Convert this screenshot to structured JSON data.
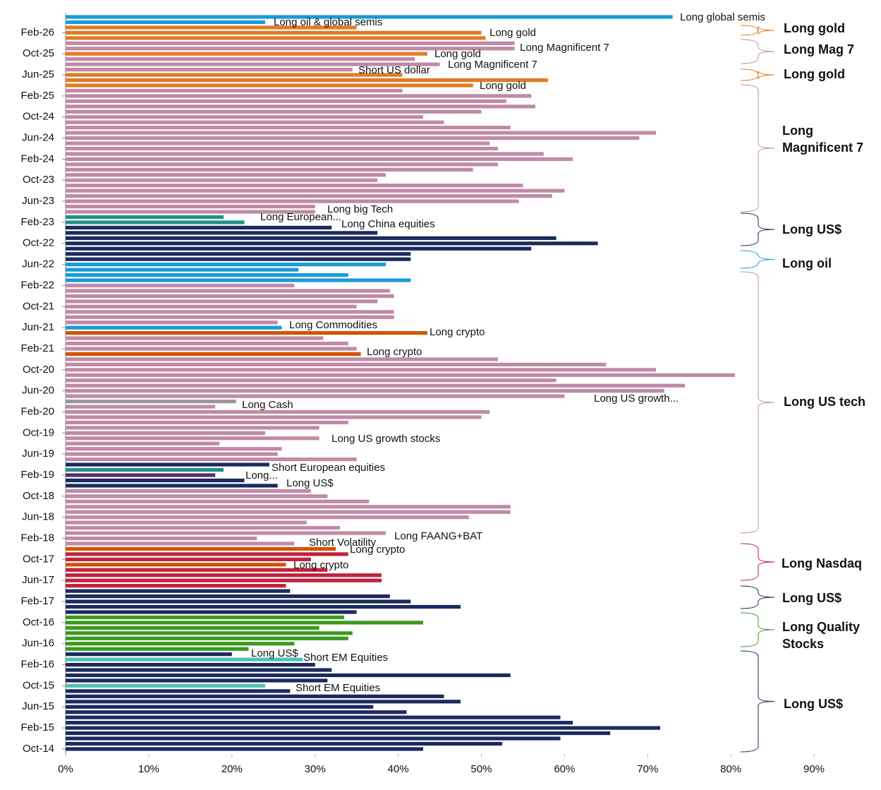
{
  "chart_data": {
    "type": "bar",
    "orientation": "horizontal",
    "categories": [
      null,
      null,
      null,
      "Feb-26",
      null,
      null,
      null,
      "Oct-25",
      null,
      null,
      null,
      "Jun-25",
      null,
      null,
      null,
      "Feb-25",
      null,
      null,
      null,
      "Oct-24",
      null,
      null,
      null,
      "Jun-24",
      null,
      null,
      null,
      "Feb-24",
      null,
      null,
      null,
      "Oct-23",
      null,
      null,
      null,
      "Jun-23",
      null,
      null,
      null,
      "Feb-23",
      null,
      null,
      null,
      "Oct-22",
      null,
      null,
      null,
      "Jun-22",
      null,
      null,
      null,
      "Feb-22",
      null,
      null,
      null,
      "Oct-21",
      null,
      null,
      null,
      "Jun-21",
      null,
      null,
      null,
      "Feb-21",
      null,
      null,
      null,
      "Oct-20",
      null,
      null,
      null,
      "Jun-20",
      null,
      null,
      null,
      "Feb-20",
      null,
      null,
      null,
      "Oct-19",
      null,
      null,
      null,
      "Jun-19",
      null,
      null,
      null,
      "Feb-19",
      null,
      null,
      null,
      "Oct-18",
      null,
      null,
      null,
      "Jun-18",
      null,
      null,
      null,
      "Feb-18",
      null,
      null,
      null,
      "Oct-17",
      null,
      null,
      null,
      "Jun-17",
      null,
      null,
      null,
      "Feb-17",
      null,
      null,
      null,
      "Oct-16",
      null,
      null,
      null,
      "Jun-16",
      null,
      null,
      null,
      "Feb-16",
      null,
      null,
      null,
      "Oct-15",
      null,
      null,
      null,
      "Jun-15",
      null,
      null,
      null,
      "Feb-15",
      null,
      null,
      null,
      "Oct-14"
    ],
    "values": [
      73,
      24,
      35,
      50,
      50.5,
      54,
      54,
      43.5,
      42,
      45,
      34.5,
      40.5,
      58,
      49,
      40.5,
      56,
      53,
      56.5,
      50,
      43,
      45.5,
      53.5,
      71,
      69,
      51,
      52,
      57.5,
      61,
      52,
      49,
      38.5,
      37.5,
      55,
      60,
      58.5,
      54.5,
      30,
      30,
      19,
      21.5,
      32,
      37.5,
      59,
      64,
      56,
      41.5,
      41.5,
      38.5,
      28,
      34,
      41.5,
      27.5,
      39,
      39.5,
      37.5,
      35,
      39.5,
      39.5,
      25.5,
      26,
      43.5,
      31,
      34,
      35,
      35.5,
      52,
      65,
      71,
      80.5,
      59,
      74.5,
      72,
      60,
      20.5,
      18,
      51,
      50,
      34,
      30.5,
      24,
      30.5,
      18.5,
      26,
      25.5,
      35,
      24.5,
      19,
      18,
      21.5,
      25.5,
      29.5,
      31.5,
      36.5,
      53.5,
      53.5,
      48.5,
      29,
      33,
      38.5,
      23,
      27.5,
      32.5,
      34,
      29.5,
      26.5,
      31.5,
      38,
      38,
      26.5,
      27,
      39,
      41.5,
      47.5,
      35,
      33.5,
      43,
      30.5,
      34.5,
      34,
      27.5,
      22,
      20,
      28.5,
      30,
      32,
      53.5,
      31.5,
      24,
      27,
      45.5,
      47.5,
      37,
      41,
      59.5,
      61,
      71.5,
      65.5,
      59.5,
      52.5,
      43
    ],
    "colors": [
      "#1a9bd7",
      "#1a9bd7",
      "#e07b24",
      "#e07b24",
      "#e07b24",
      "#c08aa6",
      "#c08aa6",
      "#e07b24",
      "#c08aa6",
      "#c08aa6",
      "#c08aa6",
      "#e07b24",
      "#e07b24",
      "#e07b24",
      "#c08aa6",
      "#c08aa6",
      "#c08aa6",
      "#c08aa6",
      "#c08aa6",
      "#c08aa6",
      "#c08aa6",
      "#c08aa6",
      "#c08aa6",
      "#c08aa6",
      "#c08aa6",
      "#c08aa6",
      "#c08aa6",
      "#c08aa6",
      "#c08aa6",
      "#c08aa6",
      "#c08aa6",
      "#c08aa6",
      "#c08aa6",
      "#c08aa6",
      "#c08aa6",
      "#c08aa6",
      "#c08aa6",
      "#c08aa6",
      "#23908a",
      "#23908a",
      "#1b2a5e",
      "#1b2a5e",
      "#1b2a5e",
      "#1b2a5e",
      "#1b2a5e",
      "#1b2a5e",
      "#1b2a5e",
      "#1a9bd7",
      "#1a9bd7",
      "#1a9bd7",
      "#1a9bd7",
      "#c08aa6",
      "#c08aa6",
      "#c08aa6",
      "#c08aa6",
      "#c08aa6",
      "#c08aa6",
      "#c08aa6",
      "#c08aa6",
      "#1a9bd7",
      "#d35400",
      "#c08aa6",
      "#c08aa6",
      "#c08aa6",
      "#d35400",
      "#c08aa6",
      "#c08aa6",
      "#c08aa6",
      "#c08aa6",
      "#c08aa6",
      "#c08aa6",
      "#c08aa6",
      "#c08aa6",
      "#999999",
      "#c08aa6",
      "#c08aa6",
      "#c08aa6",
      "#c08aa6",
      "#c08aa6",
      "#c08aa6",
      "#c08aa6",
      "#c08aa6",
      "#c08aa6",
      "#c08aa6",
      "#c08aa6",
      "#1b2a5e",
      "#23908a",
      "#5b2c6f",
      "#1b2a5e",
      "#1b2a5e",
      "#c08aa6",
      "#c08aa6",
      "#c08aa6",
      "#c08aa6",
      "#c08aa6",
      "#c08aa6",
      "#c08aa6",
      "#c08aa6",
      "#c08aa6",
      "#c08aa6",
      "#c08aa6",
      "#d35400",
      "#c0223b",
      "#c0223b",
      "#d35400",
      "#c0223b",
      "#c0223b",
      "#c0223b",
      "#c0223b",
      "#1b2a5e",
      "#1b2a5e",
      "#1b2a5e",
      "#1b2a5e",
      "#1b2a5e",
      "#3a9a1e",
      "#3a9a1e",
      "#3a9a1e",
      "#3a9a1e",
      "#3a9a1e",
      "#3a9a1e",
      "#3a9a1e",
      "#1b2a5e",
      "#4fc3b1",
      "#1b2a5e",
      "#1b2a5e",
      "#1b2a5e",
      "#1b2a5e",
      "#4fc3b1",
      "#1b2a5e",
      "#1b2a5e",
      "#1b2a5e",
      "#1b2a5e",
      "#1b2a5e",
      "#1b2a5e",
      "#1b2a5e",
      "#1b2a5e",
      "#1b2a5e",
      "#1b2a5e",
      "#1b2a5e",
      "#1b2a5e"
    ],
    "xlim": [
      0,
      90
    ],
    "xticks": [
      {
        "value": 0,
        "label": "0%"
      },
      {
        "value": 10,
        "label": "10%"
      },
      {
        "value": 20,
        "label": "20%"
      },
      {
        "value": 30,
        "label": "30%"
      },
      {
        "value": 40,
        "label": "40%"
      },
      {
        "value": 50,
        "label": "50%"
      },
      {
        "value": 60,
        "label": "60%"
      },
      {
        "value": 70,
        "label": "70%"
      },
      {
        "value": 80,
        "label": "80%"
      },
      {
        "value": 90,
        "label": "90%"
      }
    ],
    "grid": false,
    "annotations": [
      "Long global semis",
      "Long oil & global semis",
      "Long gold",
      "Long Magnificent 7",
      "Long gold",
      "Long Magnificent 7",
      "Short US dollar",
      "Long gold",
      "Long big Tech",
      "Long European...",
      "Long China equities",
      "Long Commodities",
      "Long crypto",
      "Long crypto",
      "Long US growth...",
      "Long Cash",
      "Long US growth stocks",
      "Short European equities",
      "Long...",
      "Long US$",
      "Long FAANG+BAT",
      "Short Volatility",
      "Long crypto",
      "Long crypto",
      "Long US$",
      "Short EM Equities",
      "Short EM Equities"
    ],
    "groups": [
      {
        "lines": [
          "Long gold"
        ],
        "color": "#e07b24"
      },
      {
        "lines": [
          "Long Mag 7"
        ],
        "color": "#c08aa6"
      },
      {
        "lines": [
          "Long gold"
        ],
        "color": "#e07b24"
      },
      {
        "lines": [
          "Long",
          "Magnificent 7"
        ],
        "color": "#c08aa6"
      },
      {
        "lines": [
          "Long US$"
        ],
        "color": "#1b2a5e"
      },
      {
        "lines": [
          "Long oil"
        ],
        "color": "#1a9bd7"
      },
      {
        "lines": [
          "Long US tech"
        ],
        "color": "#c08aa6"
      },
      {
        "lines": [
          "Long Nasdaq"
        ],
        "color": "#c0223b"
      },
      {
        "lines": [
          "Long US$"
        ],
        "color": "#1b2a5e"
      },
      {
        "lines": [
          "Long Quality",
          "Stocks"
        ],
        "color": "#3a9a1e"
      },
      {
        "lines": [
          "Long US$"
        ],
        "color": "#1b2a5e"
      }
    ]
  }
}
